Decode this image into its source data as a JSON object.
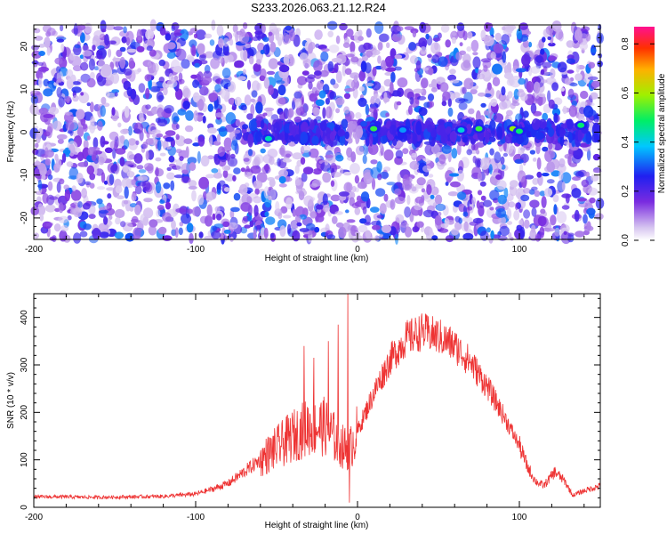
{
  "title": "S233.2026.063.21.12.R24",
  "chart_data": [
    {
      "type": "heatmap",
      "title": "S233.2026.063.21.12.R24",
      "xlabel": "Height of straight line (km)",
      "ylabel": "Frequency (Hz)",
      "xlim": [
        -200,
        150
      ],
      "ylim": [
        -25,
        25
      ],
      "xticks": [
        -200,
        -100,
        0,
        100
      ],
      "yticks": [
        -20,
        -10,
        0,
        10,
        20
      ],
      "colorbar": {
        "label": "Normalized spectral amplitude",
        "range": [
          0.0,
          0.87
        ],
        "ticks": [
          0.0,
          0.2,
          0.4,
          0.6,
          0.8
        ]
      },
      "signal_band_hz": 0,
      "hotspots": [
        {
          "x": -55,
          "y": -1.5,
          "amp": 0.45
        },
        {
          "x": 10,
          "y": 0.8,
          "amp": 0.55
        },
        {
          "x": 28,
          "y": 0.5,
          "amp": 0.35
        },
        {
          "x": 64,
          "y": 0.5,
          "amp": 0.42
        },
        {
          "x": 75,
          "y": 0.8,
          "amp": 0.55
        },
        {
          "x": 96,
          "y": 0.8,
          "amp": 0.62
        },
        {
          "x": 100,
          "y": 0.2,
          "amp": 0.5
        },
        {
          "x": 138,
          "y": 1.6,
          "amp": 0.5
        }
      ]
    },
    {
      "type": "line",
      "xlabel": "Height of straight line (km)",
      "ylabel": "SNR (10 * v/v)",
      "xlim": [
        -200,
        150
      ],
      "ylim": [
        0,
        450
      ],
      "xticks": [
        -200,
        -100,
        0,
        100
      ],
      "yticks": [
        0,
        100,
        200,
        300,
        400
      ],
      "color": "#ee3333",
      "envelope": [
        {
          "x": -200,
          "y": 22
        },
        {
          "x": -180,
          "y": 22
        },
        {
          "x": -160,
          "y": 21
        },
        {
          "x": -140,
          "y": 22
        },
        {
          "x": -120,
          "y": 23
        },
        {
          "x": -100,
          "y": 28
        },
        {
          "x": -90,
          "y": 38
        },
        {
          "x": -80,
          "y": 50
        },
        {
          "x": -70,
          "y": 75
        },
        {
          "x": -60,
          "y": 100
        },
        {
          "x": -50,
          "y": 125
        },
        {
          "x": -40,
          "y": 150
        },
        {
          "x": -30,
          "y": 170
        },
        {
          "x": -20,
          "y": 170
        },
        {
          "x": -15,
          "y": 150
        },
        {
          "x": -10,
          "y": 130
        },
        {
          "x": -5,
          "y": 120
        },
        {
          "x": 0,
          "y": 160
        },
        {
          "x": 10,
          "y": 240
        },
        {
          "x": 20,
          "y": 310
        },
        {
          "x": 30,
          "y": 355
        },
        {
          "x": 40,
          "y": 370
        },
        {
          "x": 50,
          "y": 360
        },
        {
          "x": 60,
          "y": 340
        },
        {
          "x": 70,
          "y": 305
        },
        {
          "x": 80,
          "y": 255
        },
        {
          "x": 90,
          "y": 195
        },
        {
          "x": 100,
          "y": 130
        },
        {
          "x": 105,
          "y": 85
        },
        {
          "x": 110,
          "y": 55
        },
        {
          "x": 115,
          "y": 45
        },
        {
          "x": 122,
          "y": 75
        },
        {
          "x": 128,
          "y": 55
        },
        {
          "x": 133,
          "y": 25
        },
        {
          "x": 140,
          "y": 35
        },
        {
          "x": 150,
          "y": 45
        }
      ],
      "peaks": [
        {
          "x": -33,
          "y": 340
        },
        {
          "x": -27,
          "y": 315
        },
        {
          "x": -18,
          "y": 350
        },
        {
          "x": -12,
          "y": 385
        },
        {
          "x": -6,
          "y": 450
        },
        {
          "x": -5,
          "y": 10
        }
      ]
    }
  ]
}
